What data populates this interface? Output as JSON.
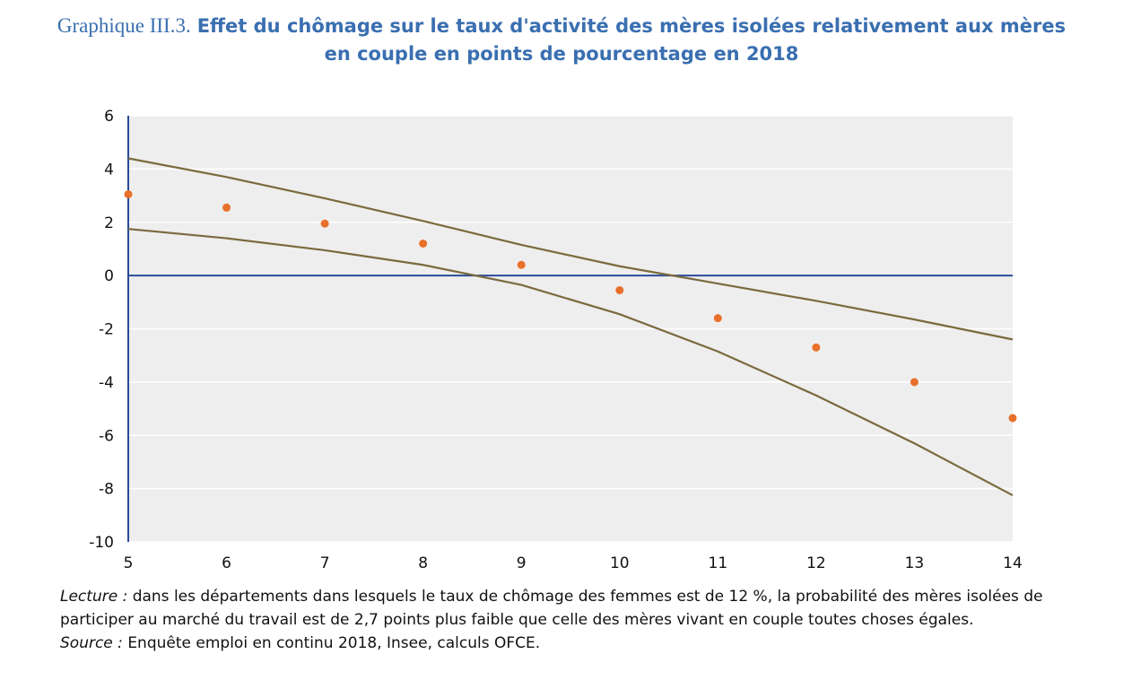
{
  "title": {
    "prefix": "Graphique III.3.",
    "main_line1": "Effet du chômage sur le taux d'activité des mères isolées relativement aux mères",
    "main_line2": "en couple en points de pourcentage en 2018"
  },
  "notes": {
    "lecture_label": "Lecture :",
    "lecture_text": "dans les départements dans lesquels le taux de chômage des femmes est de 12 %, la probabilité des mères isolées de participer au marché du travail est de 2,7 points plus faible que celle des mères vivant en couple toutes choses égales.",
    "source_label": "Source :",
    "source_text": "Enquête emploi en continu 2018, Insee, calculs OFCE."
  },
  "chart_data": {
    "type": "scatter",
    "x": [
      5,
      6,
      7,
      8,
      9,
      10,
      11,
      12,
      13,
      14
    ],
    "xlim": [
      5,
      14
    ],
    "ylim": [
      -10,
      6
    ],
    "xticks": [
      "5",
      "6",
      "7",
      "8",
      "9",
      "10",
      "11",
      "12",
      "13",
      "14"
    ],
    "yticks": [
      "6",
      "4",
      "2",
      "0",
      "-2",
      "-4",
      "-6",
      "-8",
      "-10"
    ],
    "grid": true,
    "series": [
      {
        "kind": "points",
        "values": [
          3.05,
          2.55,
          1.95,
          1.2,
          0.4,
          -0.55,
          -1.6,
          -2.7,
          -4.0,
          -5.35
        ],
        "color": "#e8702a"
      },
      {
        "kind": "line",
        "values": [
          4.4,
          3.7,
          2.9,
          2.05,
          1.15,
          0.35,
          -0.3,
          -0.95,
          -1.65,
          -2.4
        ],
        "color": "#7a6a3e"
      },
      {
        "kind": "line",
        "values": [
          1.75,
          1.4,
          0.95,
          0.4,
          -0.35,
          -1.45,
          -2.85,
          -4.5,
          -6.3,
          -8.25
        ],
        "color": "#7a6a3e"
      }
    ],
    "colors": {
      "plot_bg": "#eeeeee",
      "axis": "#2a4b9a",
      "grid": "#ffffff"
    }
  }
}
